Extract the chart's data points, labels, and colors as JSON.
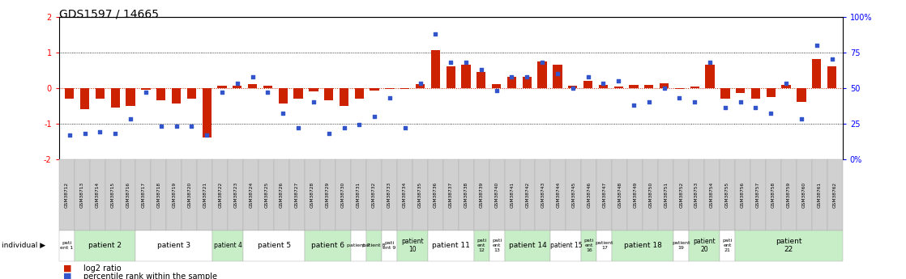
{
  "title": "GDS1597 / 14665",
  "samples": [
    "GSM38712",
    "GSM38713",
    "GSM38714",
    "GSM38715",
    "GSM38716",
    "GSM38717",
    "GSM38718",
    "GSM38719",
    "GSM38720",
    "GSM38721",
    "GSM38722",
    "GSM38723",
    "GSM38724",
    "GSM38725",
    "GSM38726",
    "GSM38727",
    "GSM38728",
    "GSM38729",
    "GSM38730",
    "GSM38731",
    "GSM38732",
    "GSM38733",
    "GSM38734",
    "GSM38735",
    "GSM38736",
    "GSM38737",
    "GSM38738",
    "GSM38739",
    "GSM38740",
    "GSM38741",
    "GSM38742",
    "GSM38743",
    "GSM38744",
    "GSM38745",
    "GSM38746",
    "GSM38747",
    "GSM38748",
    "GSM38749",
    "GSM38750",
    "GSM38751",
    "GSM38752",
    "GSM38753",
    "GSM38754",
    "GSM38755",
    "GSM38756",
    "GSM38757",
    "GSM38758",
    "GSM38759",
    "GSM38760",
    "GSM38761",
    "GSM38762"
  ],
  "log2_ratio": [
    -0.3,
    -0.6,
    -0.3,
    -0.55,
    -0.5,
    -0.05,
    -0.35,
    -0.45,
    -0.3,
    -1.4,
    0.05,
    0.05,
    0.1,
    0.05,
    -0.45,
    -0.3,
    -0.1,
    -0.35,
    -0.5,
    -0.3,
    -0.08,
    -0.04,
    -0.04,
    0.1,
    1.05,
    0.6,
    0.65,
    0.45,
    0.1,
    0.3,
    0.3,
    0.75,
    0.65,
    0.05,
    0.2,
    0.08,
    0.04,
    0.08,
    0.08,
    0.12,
    -0.04,
    0.04,
    0.65,
    -0.3,
    -0.15,
    -0.3,
    -0.25,
    0.08,
    -0.4,
    0.8,
    0.6
  ],
  "percentile": [
    17,
    18,
    19,
    18,
    28,
    47,
    23,
    23,
    23,
    17,
    47,
    53,
    58,
    47,
    32,
    22,
    40,
    18,
    22,
    24,
    30,
    43,
    22,
    53,
    88,
    68,
    68,
    63,
    48,
    58,
    58,
    68,
    60,
    50,
    58,
    53,
    55,
    38,
    40,
    50,
    43,
    40,
    68,
    36,
    40,
    36,
    32,
    53,
    28,
    80,
    70
  ],
  "patients": [
    {
      "label": "pati\nent 1",
      "start": 0,
      "end": 0,
      "color": "#ffffff"
    },
    {
      "label": "patient 2",
      "start": 1,
      "end": 4,
      "color": "#c8eec8"
    },
    {
      "label": "patient 3",
      "start": 5,
      "end": 9,
      "color": "#ffffff"
    },
    {
      "label": "patient 4",
      "start": 10,
      "end": 11,
      "color": "#c8eec8"
    },
    {
      "label": "patient 5",
      "start": 12,
      "end": 15,
      "color": "#ffffff"
    },
    {
      "label": "patient 6",
      "start": 16,
      "end": 18,
      "color": "#c8eec8"
    },
    {
      "label": "patient 7",
      "start": 19,
      "end": 19,
      "color": "#ffffff"
    },
    {
      "label": "patient 8",
      "start": 20,
      "end": 20,
      "color": "#c8eec8"
    },
    {
      "label": "pati\nent 9",
      "start": 21,
      "end": 21,
      "color": "#ffffff"
    },
    {
      "label": "patient\n10",
      "start": 22,
      "end": 23,
      "color": "#c8eec8"
    },
    {
      "label": "patient 11",
      "start": 24,
      "end": 26,
      "color": "#ffffff"
    },
    {
      "label": "pati\nent\n12",
      "start": 27,
      "end": 27,
      "color": "#c8eec8"
    },
    {
      "label": "pati\nent\n13",
      "start": 28,
      "end": 28,
      "color": "#ffffff"
    },
    {
      "label": "patient 14",
      "start": 29,
      "end": 31,
      "color": "#c8eec8"
    },
    {
      "label": "patient 15",
      "start": 32,
      "end": 33,
      "color": "#ffffff"
    },
    {
      "label": "pati\nent\n16",
      "start": 34,
      "end": 34,
      "color": "#c8eec8"
    },
    {
      "label": "patient\n17",
      "start": 35,
      "end": 35,
      "color": "#ffffff"
    },
    {
      "label": "patient 18",
      "start": 36,
      "end": 39,
      "color": "#c8eec8"
    },
    {
      "label": "patient\n19",
      "start": 40,
      "end": 40,
      "color": "#ffffff"
    },
    {
      "label": "patient\n20",
      "start": 41,
      "end": 42,
      "color": "#c8eec8"
    },
    {
      "label": "pati\nent\n21",
      "start": 43,
      "end": 43,
      "color": "#ffffff"
    },
    {
      "label": "patient\n22",
      "start": 44,
      "end": 50,
      "color": "#c8eec8"
    }
  ],
  "bar_color": "#cc2200",
  "dot_color": "#3355cc",
  "gsm_cell_color": "#d0d0d0",
  "gsm_border_color": "#aaaaaa",
  "patient_border_color": "#aaaaaa"
}
